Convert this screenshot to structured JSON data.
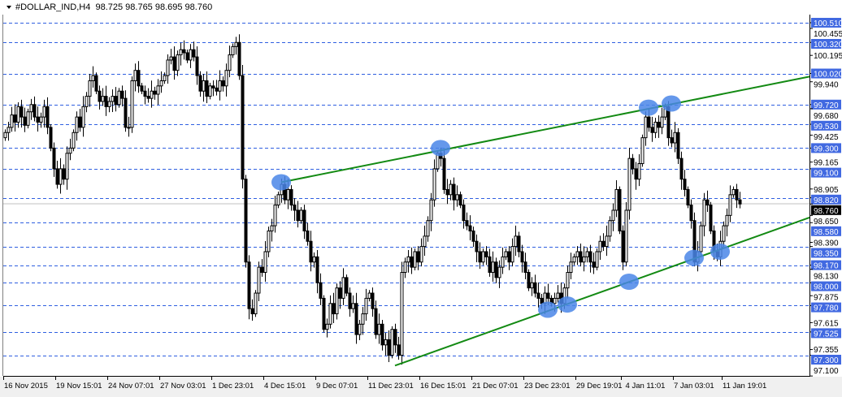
{
  "header": {
    "symbol": "#DOLLAR_IND,H4",
    "ohlc": "98.725 98.765 98.695 98.760",
    "menu_icon": "triangle-down-icon"
  },
  "colors": {
    "grid_level": "#2f5fe0",
    "level_label_bg": "#4169e1",
    "trendline": "#138a13",
    "highlight": "#4a86e8",
    "bear_candle": "#000000",
    "bull_candle": "#ffffff",
    "current_price_bg": "#000000"
  },
  "chart_data": {
    "type": "candlestick",
    "title": "#DOLLAR_IND,H4",
    "ylim": [
      97.1,
      100.51
    ],
    "grid": false,
    "y_tick_labels": [
      "100.455",
      "100.195",
      "99.940",
      "99.680",
      "99.425",
      "99.165",
      "98.905",
      "98.650",
      "98.390",
      "98.130",
      "97.875",
      "97.615",
      "97.355",
      "97.100"
    ],
    "level_lines": [
      "100.510",
      "100.320",
      "100.020",
      "99.720",
      "99.530",
      "99.300",
      "99.100",
      "98.820",
      "98.580",
      "98.350",
      "98.170",
      "98.000",
      "97.780",
      "97.525",
      "97.300"
    ],
    "current_price": "98.760",
    "x_tick_labels": [
      {
        "bar": 0,
        "label": "16 Nov 2015"
      },
      {
        "bar": 16,
        "label": "19 Nov 15:01"
      },
      {
        "bar": 32,
        "label": "24 Nov 07:01"
      },
      {
        "bar": 48,
        "label": "27 Nov 03:01"
      },
      {
        "bar": 64,
        "label": "1 Dec 23:01"
      },
      {
        "bar": 80,
        "label": "4 Dec 15:01"
      },
      {
        "bar": 96,
        "label": "9 Dec 07:01"
      },
      {
        "bar": 112,
        "label": "11 Dec 23:01"
      },
      {
        "bar": 128,
        "label": "16 Dec 15:01"
      },
      {
        "bar": 144,
        "label": "21 Dec 07:01"
      },
      {
        "bar": 160,
        "label": "23 Dec 23:01"
      },
      {
        "bar": 176,
        "label": "29 Dec 19:01"
      },
      {
        "bar": 190,
        "label": "4 Jan 11:01"
      },
      {
        "bar": 206,
        "label": "7 Jan 03:01"
      },
      {
        "bar": 221,
        "label": "11 Jan 19:01"
      }
    ],
    "closes": [
      99.45,
      99.5,
      99.62,
      99.55,
      99.7,
      99.6,
      99.52,
      99.65,
      99.72,
      99.6,
      99.55,
      99.6,
      99.7,
      99.5,
      99.3,
      99.1,
      98.95,
      99.1,
      99.0,
      99.25,
      99.3,
      99.45,
      99.6,
      99.5,
      99.7,
      99.8,
      99.95,
      100.0,
      99.85,
      99.75,
      99.8,
      99.7,
      99.75,
      99.8,
      99.72,
      99.85,
      99.78,
      99.5,
      99.5,
      99.95,
      100.05,
      99.9,
      99.85,
      99.8,
      99.78,
      99.85,
      99.82,
      99.9,
      99.95,
      100.0,
      100.15,
      100.18,
      100.05,
      100.2,
      100.25,
      100.22,
      100.15,
      100.25,
      100.18,
      100.0,
      99.85,
      99.95,
      99.8,
      99.9,
      99.88,
      99.85,
      99.95,
      99.9,
      100.05,
      100.2,
      100.28,
      100.32,
      100.0,
      99.0,
      98.2,
      97.75,
      97.7,
      97.9,
      98.15,
      98.1,
      98.3,
      98.5,
      98.55,
      98.75,
      98.85,
      98.95,
      98.8,
      98.9,
      98.75,
      98.7,
      98.6,
      98.7,
      98.5,
      98.4,
      98.2,
      98.25,
      98.0,
      97.85,
      97.55,
      97.6,
      97.8,
      97.7,
      97.95,
      97.85,
      98.05,
      97.9,
      97.75,
      97.8,
      97.5,
      97.6,
      97.7,
      97.85,
      97.9,
      97.75,
      97.5,
      97.6,
      97.4,
      97.45,
      97.3,
      97.55,
      97.4,
      97.3,
      98.1,
      98.2,
      98.25,
      98.15,
      98.3,
      98.2,
      98.35,
      98.45,
      98.6,
      98.8,
      99.1,
      99.25,
      99.2,
      98.9,
      98.85,
      98.95,
      98.8,
      98.85,
      98.75,
      98.6,
      98.55,
      98.5,
      98.4,
      98.3,
      98.2,
      98.3,
      98.25,
      98.1,
      98.2,
      98.05,
      98.15,
      98.25,
      98.3,
      98.2,
      98.35,
      98.45,
      98.3,
      98.2,
      98.1,
      97.95,
      98.0,
      97.9,
      97.85,
      97.8,
      97.9,
      97.85,
      97.8,
      97.85,
      97.9,
      97.8,
      97.95,
      98.1,
      98.2,
      98.25,
      98.3,
      98.2,
      98.25,
      98.3,
      98.2,
      98.15,
      98.3,
      98.4,
      98.35,
      98.45,
      98.6,
      98.7,
      98.9,
      98.5,
      98.2,
      98.7,
      99.2,
      99.1,
      99.0,
      99.15,
      99.4,
      99.6,
      99.5,
      99.45,
      99.55,
      99.5,
      99.6,
      99.7,
      99.4,
      99.35,
      99.45,
      99.2,
      99.0,
      98.9,
      98.75,
      98.6,
      98.2,
      98.3,
      98.55,
      98.8,
      98.75,
      98.5,
      98.3,
      98.25,
      98.4,
      98.55,
      98.65,
      98.85,
      98.9,
      98.8,
      98.76
    ],
    "trendlines": [
      {
        "from": {
          "bar": 85,
          "price": 98.97
        },
        "to_price_at_right_edge": 99.99
      },
      {
        "from": {
          "bar": 120,
          "price": 97.2
        },
        "to_price_at_right_edge": 98.63
      }
    ],
    "highlights": [
      {
        "bar": 85,
        "price": 98.97
      },
      {
        "bar": 134,
        "price": 99.3
      },
      {
        "bar": 167,
        "price": 97.74
      },
      {
        "bar": 173,
        "price": 97.79
      },
      {
        "bar": 192,
        "price": 98.01
      },
      {
        "bar": 198,
        "price": 99.69
      },
      {
        "bar": 205,
        "price": 99.73
      },
      {
        "bar": 212,
        "price": 98.24
      },
      {
        "bar": 220,
        "price": 98.3
      }
    ]
  }
}
